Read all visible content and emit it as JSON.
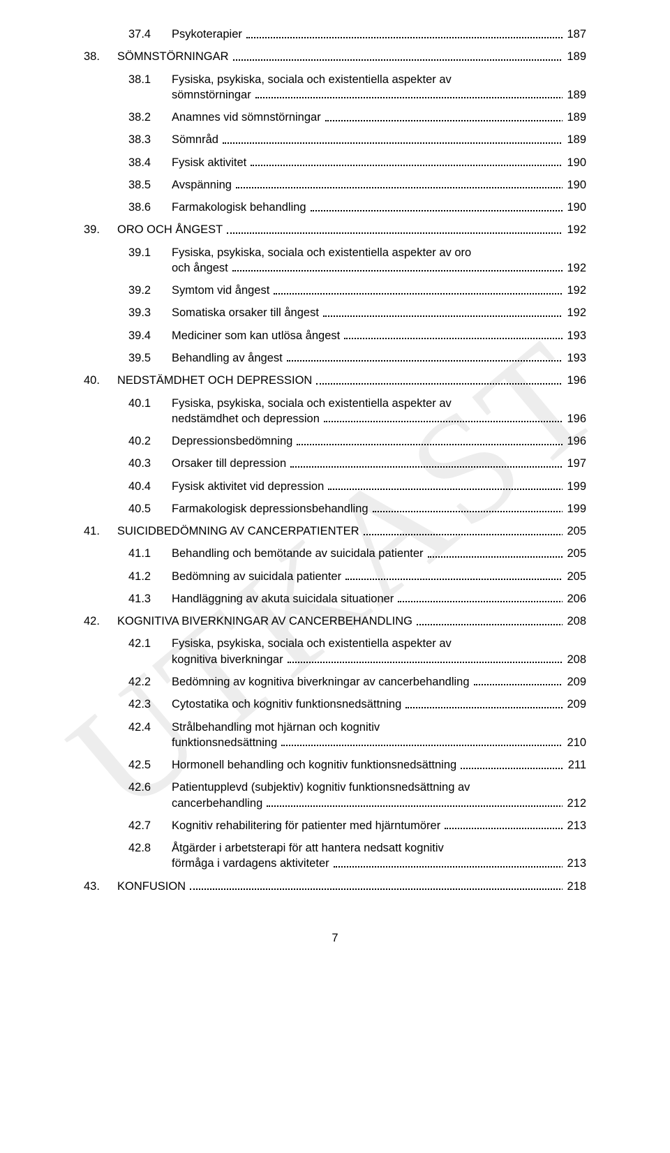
{
  "watermark_text": "UTKAST",
  "footer_page_number": "7",
  "entries": [
    {
      "level": 1,
      "num": "37.4",
      "title": "Psykoterapier",
      "page": "187"
    },
    {
      "level": 0,
      "num": "38.",
      "title": "SÖMNSTÖRNINGAR",
      "page": "189"
    },
    {
      "level": 1,
      "num": "38.1",
      "title_lines": [
        "Fysiska, psykiska, sociala och existentiella aspekter av",
        "sömnstörningar"
      ],
      "page": "189"
    },
    {
      "level": 1,
      "num": "38.2",
      "title": "Anamnes vid sömnstörningar",
      "page": "189"
    },
    {
      "level": 1,
      "num": "38.3",
      "title": "Sömnråd",
      "page": "189"
    },
    {
      "level": 1,
      "num": "38.4",
      "title": "Fysisk aktivitet",
      "page": "190"
    },
    {
      "level": 1,
      "num": "38.5",
      "title": "Avspänning",
      "page": "190"
    },
    {
      "level": 1,
      "num": "38.6",
      "title": "Farmakologisk behandling",
      "page": "190"
    },
    {
      "level": 0,
      "num": "39.",
      "title": "ORO OCH ÅNGEST",
      "page": "192"
    },
    {
      "level": 1,
      "num": "39.1",
      "title_lines": [
        "Fysiska, psykiska, sociala och existentiella aspekter av oro",
        "och ångest"
      ],
      "page": "192"
    },
    {
      "level": 1,
      "num": "39.2",
      "title": "Symtom vid ångest",
      "page": "192"
    },
    {
      "level": 1,
      "num": "39.3",
      "title": "Somatiska orsaker till ångest",
      "page": "192"
    },
    {
      "level": 1,
      "num": "39.4",
      "title": "Mediciner som kan utlösa ångest",
      "page": "193"
    },
    {
      "level": 1,
      "num": "39.5",
      "title": "Behandling av ångest",
      "page": "193"
    },
    {
      "level": 0,
      "num": "40.",
      "title": "NEDSTÄMDHET OCH DEPRESSION",
      "page": "196"
    },
    {
      "level": 1,
      "num": "40.1",
      "title_lines": [
        "Fysiska, psykiska, sociala och existentiella aspekter av",
        "nedstämdhet och depression"
      ],
      "page": "196"
    },
    {
      "level": 1,
      "num": "40.2",
      "title": "Depressionsbedömning",
      "page": "196"
    },
    {
      "level": 1,
      "num": "40.3",
      "title": "Orsaker till depression",
      "page": "197"
    },
    {
      "level": 1,
      "num": "40.4",
      "title": "Fysisk aktivitet vid depression",
      "page": "199"
    },
    {
      "level": 1,
      "num": "40.5",
      "title": "Farmakologisk depressionsbehandling",
      "page": "199"
    },
    {
      "level": 0,
      "num": "41.",
      "title": "SUICIDBEDÖMNING AV CANCERPATIENTER",
      "page": "205"
    },
    {
      "level": 1,
      "num": "41.1",
      "title": "Behandling och bemötande av suicidala patienter",
      "page": "205"
    },
    {
      "level": 1,
      "num": "41.2",
      "title": "Bedömning av suicidala patienter",
      "page": "205"
    },
    {
      "level": 1,
      "num": "41.3",
      "title": "Handläggning av akuta suicidala situationer",
      "page": "206"
    },
    {
      "level": 0,
      "num": "42.",
      "title": "KOGNITIVA BIVERKNINGAR AV CANCERBEHANDLING",
      "page": "208"
    },
    {
      "level": 1,
      "num": "42.1",
      "title_lines": [
        "Fysiska, psykiska, sociala och existentiella aspekter av",
        "kognitiva biverkningar"
      ],
      "page": "208"
    },
    {
      "level": 1,
      "num": "42.2",
      "title": "Bedömning av kognitiva biverkningar av cancerbehandling",
      "page": "209"
    },
    {
      "level": 1,
      "num": "42.3",
      "title": "Cytostatika och kognitiv funktionsnedsättning",
      "page": "209"
    },
    {
      "level": 1,
      "num": "42.4",
      "title_lines": [
        "Strålbehandling mot hjärnan och kognitiv",
        "funktionsnedsättning"
      ],
      "page": "210"
    },
    {
      "level": 1,
      "num": "42.5",
      "title": "Hormonell behandling och kognitiv funktionsnedsättning",
      "page": "211"
    },
    {
      "level": 1,
      "num": "42.6",
      "title_lines": [
        "Patientupplevd (subjektiv) kognitiv funktionsnedsättning av",
        "cancerbehandling"
      ],
      "page": "212"
    },
    {
      "level": 1,
      "num": "42.7",
      "title": "Kognitiv rehabilitering för patienter med hjärntumörer",
      "page": "213"
    },
    {
      "level": 1,
      "num": "42.8",
      "title_lines": [
        "Åtgärder i arbetsterapi för att hantera nedsatt kognitiv",
        "förmåga i vardagens aktiviteter"
      ],
      "page": "213"
    },
    {
      "level": 0,
      "num": "43.",
      "title": "KONFUSION",
      "page": "218"
    }
  ]
}
